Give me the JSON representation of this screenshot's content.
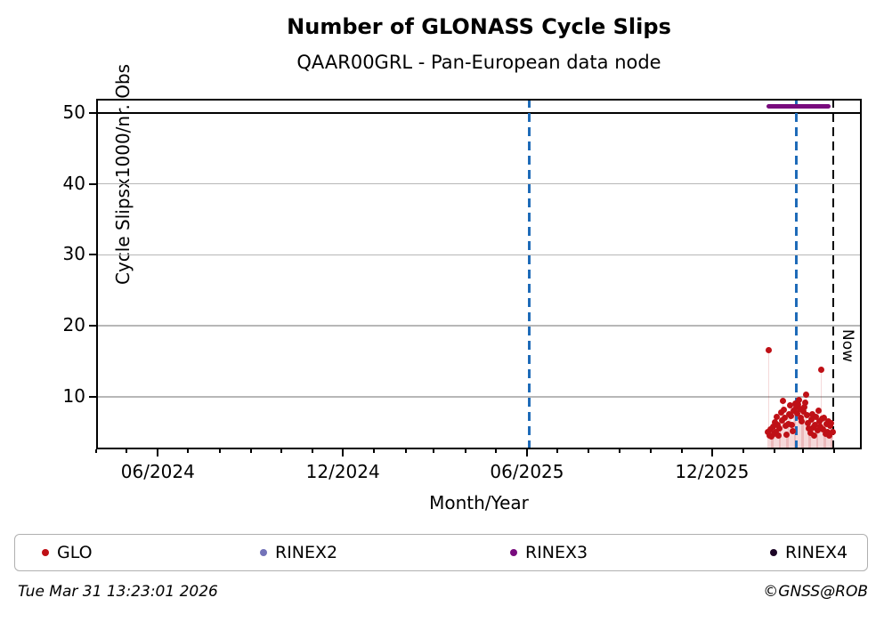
{
  "header": {
    "title": "Number of GLONASS Cycle Slips",
    "subtitle": "QAAR00GRL - Pan-European data node"
  },
  "chart_data": {
    "type": "scatter",
    "title": "Number of GLONASS Cycle Slips",
    "subtitle": "QAAR00GRL - Pan-European data node",
    "xlabel": "Month/Year",
    "ylabel": "Cycle Slipsx1000/nr. Obs",
    "x_axis": {
      "min": "2024-04-01",
      "max": "2026-04-28",
      "major_ticks": [
        {
          "date": "2024-06-01",
          "label": "06/2024"
        },
        {
          "date": "2024-12-01",
          "label": "12/2024"
        },
        {
          "date": "2025-06-01",
          "label": "06/2025"
        },
        {
          "date": "2025-12-01",
          "label": "12/2025"
        }
      ],
      "minor_tick_unit": "month",
      "grid": false
    },
    "y_axis": {
      "min": 2.6,
      "max": 52,
      "ticks": [
        10,
        20,
        30,
        40,
        50
      ],
      "grid": true
    },
    "cap_line_value": 50,
    "reference_lines": [
      {
        "date": "2025-06-03",
        "color": "#1e6bb8",
        "style": "dashed",
        "width": 3,
        "label": ""
      },
      {
        "date": "2026-02-22",
        "color": "#1e6bb8",
        "style": "dashed",
        "width": 3,
        "label": ""
      },
      {
        "date": "2026-03-31",
        "color": "#000000",
        "style": "dashed",
        "width": 2,
        "label": "Now"
      }
    ],
    "now_label": "Now",
    "series": [
      {
        "name": "GLO",
        "color": "#bf1016",
        "stem_color": "rgba(191,16,22,0.16)",
        "marker_size": 7,
        "points": [
          [
            "2026-01-25",
            5.0
          ],
          [
            "2026-01-26",
            16.6
          ],
          [
            "2026-01-27",
            4.6
          ],
          [
            "2026-01-28",
            5.4
          ],
          [
            "2026-01-29",
            4.4
          ],
          [
            "2026-01-30",
            5.8
          ],
          [
            "2026-01-31",
            4.8
          ],
          [
            "2026-02-01",
            6.4
          ],
          [
            "2026-02-02",
            5.1
          ],
          [
            "2026-02-03",
            7.2
          ],
          [
            "2026-02-04",
            6.0
          ],
          [
            "2026-02-05",
            4.5
          ],
          [
            "2026-02-06",
            5.6
          ],
          [
            "2026-02-07",
            7.8
          ],
          [
            "2026-02-08",
            6.7
          ],
          [
            "2026-02-09",
            9.4
          ],
          [
            "2026-02-10",
            8.2
          ],
          [
            "2026-02-11",
            7.0
          ],
          [
            "2026-02-12",
            5.9
          ],
          [
            "2026-02-13",
            4.7
          ],
          [
            "2026-02-14",
            6.2
          ],
          [
            "2026-02-15",
            7.5
          ],
          [
            "2026-02-16",
            8.8
          ],
          [
            "2026-02-17",
            7.3
          ],
          [
            "2026-02-18",
            6.1
          ],
          [
            "2026-02-19",
            5.2
          ],
          [
            "2026-02-20",
            8.0
          ],
          [
            "2026-02-21",
            9.1
          ],
          [
            "2026-02-22",
            8.5
          ],
          [
            "2026-02-23",
            7.7
          ],
          [
            "2026-02-24",
            8.9
          ],
          [
            "2026-02-25",
            9.6
          ],
          [
            "2026-02-26",
            8.3
          ],
          [
            "2026-02-27",
            7.1
          ],
          [
            "2026-02-28",
            6.6
          ],
          [
            "2026-03-01",
            7.9
          ],
          [
            "2026-03-02",
            8.6
          ],
          [
            "2026-03-03",
            9.2
          ],
          [
            "2026-03-04",
            10.3
          ],
          [
            "2026-03-05",
            7.4
          ],
          [
            "2026-03-06",
            6.3
          ],
          [
            "2026-03-07",
            5.5
          ],
          [
            "2026-03-08",
            4.9
          ],
          [
            "2026-03-09",
            6.8
          ],
          [
            "2026-03-10",
            7.6
          ],
          [
            "2026-03-11",
            5.7
          ],
          [
            "2026-03-12",
            4.6
          ],
          [
            "2026-03-13",
            6.0
          ],
          [
            "2026-03-14",
            7.2
          ],
          [
            "2026-03-15",
            5.3
          ],
          [
            "2026-03-16",
            8.1
          ],
          [
            "2026-03-17",
            6.5
          ],
          [
            "2026-03-18",
            5.8
          ],
          [
            "2026-03-19",
            13.8
          ],
          [
            "2026-03-20",
            6.9
          ],
          [
            "2026-03-21",
            5.4
          ],
          [
            "2026-03-22",
            7.0
          ],
          [
            "2026-03-23",
            4.8
          ],
          [
            "2026-03-24",
            6.2
          ],
          [
            "2026-03-25",
            5.1
          ],
          [
            "2026-03-26",
            6.6
          ],
          [
            "2026-03-27",
            4.5
          ],
          [
            "2026-03-28",
            5.9
          ],
          [
            "2026-03-29",
            6.3
          ],
          [
            "2026-03-30",
            5.0
          ]
        ]
      },
      {
        "name": "RINEX2",
        "color": "#7373b9",
        "points": []
      },
      {
        "name": "RINEX3",
        "color": "#780b7d",
        "segment": {
          "start": "2026-01-24",
          "end": "2026-03-28",
          "value": 50.9
        },
        "points": []
      },
      {
        "name": "RINEX4",
        "color": "#1c0526",
        "points": []
      }
    ]
  },
  "legend": {
    "items": [
      {
        "label": "GLO",
        "color": "#bf1016"
      },
      {
        "label": "RINEX2",
        "color": "#7373b9"
      },
      {
        "label": "RINEX3",
        "color": "#780b7d"
      },
      {
        "label": "RINEX4",
        "color": "#1c0526"
      }
    ]
  },
  "footer": {
    "timestamp": "Tue Mar 31 13:23:01 2026",
    "credit": "©GNSS@ROB"
  }
}
